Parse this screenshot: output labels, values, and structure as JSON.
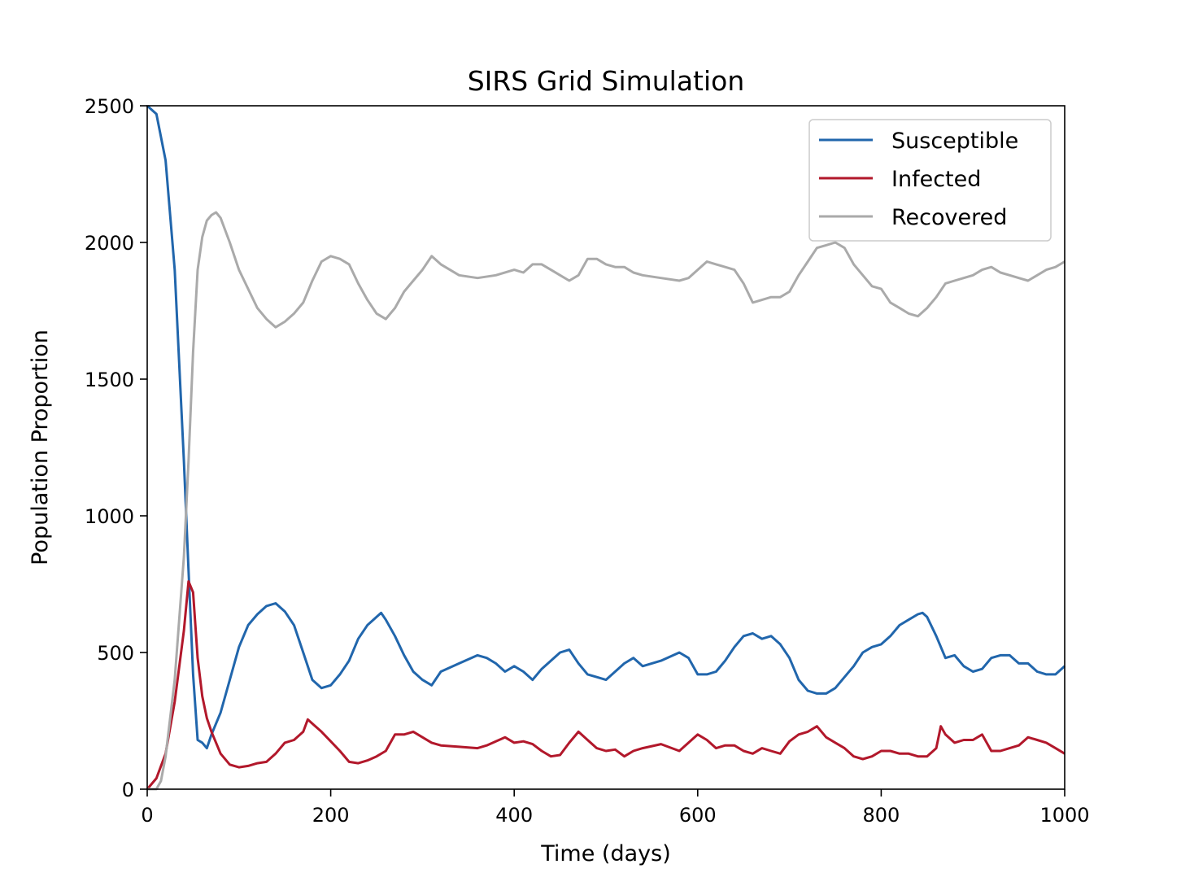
{
  "chart_data": {
    "type": "line",
    "title": "SIRS Grid Simulation",
    "xlabel": "Time (days)",
    "ylabel": "Population Proportion",
    "xlim": [
      0,
      1000
    ],
    "ylim": [
      0,
      2500
    ],
    "xticks": [
      0,
      200,
      400,
      600,
      800,
      1000
    ],
    "yticks": [
      0,
      500,
      1000,
      1500,
      2000,
      2500
    ],
    "grid": false,
    "legend_position": "top-right",
    "series": [
      {
        "name": "Susceptible",
        "color": "#2166ac",
        "x": [
          0,
          10,
          20,
          30,
          40,
          45,
          50,
          55,
          60,
          65,
          70,
          80,
          90,
          100,
          110,
          120,
          130,
          140,
          150,
          160,
          170,
          180,
          190,
          200,
          210,
          220,
          230,
          240,
          250,
          255,
          260,
          270,
          280,
          290,
          300,
          310,
          320,
          340,
          360,
          370,
          380,
          390,
          400,
          410,
          420,
          430,
          440,
          450,
          460,
          470,
          480,
          490,
          500,
          510,
          520,
          530,
          540,
          560,
          580,
          590,
          600,
          610,
          620,
          630,
          640,
          650,
          660,
          665,
          670,
          680,
          690,
          700,
          710,
          720,
          730,
          740,
          750,
          760,
          770,
          780,
          790,
          800,
          810,
          820,
          830,
          840,
          845,
          850,
          860,
          870,
          880,
          890,
          900,
          910,
          920,
          930,
          940,
          950,
          960,
          970,
          980,
          990,
          1000
        ],
        "y": [
          2500,
          2470,
          2300,
          1900,
          1200,
          800,
          420,
          180,
          170,
          150,
          200,
          280,
          400,
          520,
          600,
          640,
          670,
          680,
          650,
          600,
          500,
          400,
          370,
          380,
          420,
          470,
          550,
          600,
          630,
          645,
          620,
          560,
          490,
          430,
          400,
          380,
          430,
          460,
          490,
          480,
          460,
          430,
          450,
          430,
          400,
          440,
          470,
          500,
          510,
          460,
          420,
          410,
          400,
          430,
          460,
          480,
          450,
          470,
          500,
          480,
          420,
          420,
          430,
          470,
          520,
          560,
          570,
          560,
          550,
          560,
          530,
          480,
          400,
          360,
          350,
          350,
          370,
          410,
          450,
          500,
          520,
          530,
          560,
          600,
          620,
          640,
          645,
          630,
          560,
          480,
          490,
          450,
          430,
          440,
          480,
          490,
          490,
          460,
          460,
          430,
          420,
          420,
          450
        ]
      },
      {
        "name": "Infected",
        "color": "#b2182b",
        "x": [
          0,
          10,
          20,
          30,
          40,
          45,
          50,
          55,
          60,
          65,
          70,
          80,
          90,
          100,
          110,
          120,
          130,
          140,
          150,
          160,
          170,
          175,
          180,
          190,
          200,
          210,
          220,
          230,
          240,
          250,
          260,
          270,
          280,
          290,
          300,
          310,
          320,
          340,
          360,
          370,
          380,
          390,
          400,
          410,
          420,
          430,
          440,
          450,
          460,
          470,
          480,
          490,
          500,
          510,
          520,
          530,
          540,
          560,
          580,
          590,
          600,
          610,
          620,
          630,
          640,
          650,
          660,
          670,
          680,
          690,
          700,
          710,
          720,
          730,
          740,
          750,
          760,
          770,
          780,
          790,
          800,
          810,
          820,
          830,
          840,
          850,
          860,
          865,
          870,
          880,
          890,
          900,
          910,
          920,
          930,
          940,
          950,
          960,
          970,
          980,
          990,
          1000
        ],
        "y": [
          0,
          40,
          130,
          320,
          580,
          760,
          720,
          480,
          340,
          260,
          210,
          130,
          90,
          80,
          85,
          95,
          100,
          130,
          170,
          180,
          210,
          255,
          240,
          210,
          175,
          140,
          100,
          95,
          105,
          120,
          140,
          200,
          200,
          210,
          190,
          170,
          160,
          155,
          150,
          160,
          175,
          190,
          170,
          175,
          165,
          140,
          120,
          125,
          170,
          210,
          180,
          150,
          140,
          145,
          120,
          140,
          150,
          165,
          140,
          170,
          200,
          180,
          150,
          160,
          160,
          140,
          130,
          150,
          140,
          130,
          175,
          200,
          210,
          230,
          190,
          170,
          150,
          120,
          110,
          120,
          140,
          140,
          130,
          130,
          120,
          120,
          150,
          230,
          200,
          170,
          180,
          180,
          200,
          140,
          140,
          150,
          160,
          190,
          180,
          170,
          150,
          130
        ]
      },
      {
        "name": "Recovered",
        "color": "#aaaaaa",
        "x": [
          0,
          10,
          15,
          20,
          30,
          40,
          45,
          50,
          55,
          60,
          65,
          70,
          75,
          80,
          90,
          100,
          110,
          120,
          130,
          140,
          150,
          160,
          170,
          180,
          190,
          200,
          210,
          220,
          230,
          240,
          250,
          260,
          270,
          280,
          290,
          300,
          310,
          320,
          340,
          360,
          380,
          400,
          410,
          420,
          430,
          440,
          450,
          460,
          470,
          480,
          490,
          500,
          510,
          520,
          530,
          540,
          560,
          580,
          590,
          600,
          610,
          620,
          630,
          640,
          650,
          660,
          670,
          680,
          690,
          700,
          710,
          720,
          730,
          740,
          750,
          760,
          770,
          780,
          790,
          800,
          810,
          820,
          830,
          840,
          850,
          860,
          870,
          880,
          890,
          900,
          910,
          920,
          930,
          940,
          950,
          960,
          970,
          980,
          990,
          1000
        ],
        "y": [
          0,
          0,
          30,
          120,
          400,
          850,
          1200,
          1600,
          1900,
          2020,
          2080,
          2100,
          2110,
          2090,
          2000,
          1900,
          1830,
          1760,
          1720,
          1690,
          1710,
          1740,
          1780,
          1860,
          1930,
          1950,
          1940,
          1920,
          1850,
          1790,
          1740,
          1720,
          1760,
          1820,
          1860,
          1900,
          1950,
          1920,
          1880,
          1870,
          1880,
          1900,
          1890,
          1920,
          1920,
          1900,
          1880,
          1860,
          1880,
          1940,
          1940,
          1920,
          1910,
          1910,
          1890,
          1880,
          1870,
          1860,
          1870,
          1900,
          1930,
          1920,
          1910,
          1900,
          1850,
          1780,
          1790,
          1800,
          1800,
          1820,
          1880,
          1930,
          1980,
          1990,
          2000,
          1980,
          1920,
          1880,
          1840,
          1830,
          1780,
          1760,
          1740,
          1730,
          1760,
          1800,
          1850,
          1860,
          1870,
          1880,
          1900,
          1910,
          1890,
          1880,
          1870,
          1860,
          1880,
          1900,
          1910,
          1930
        ]
      }
    ]
  }
}
